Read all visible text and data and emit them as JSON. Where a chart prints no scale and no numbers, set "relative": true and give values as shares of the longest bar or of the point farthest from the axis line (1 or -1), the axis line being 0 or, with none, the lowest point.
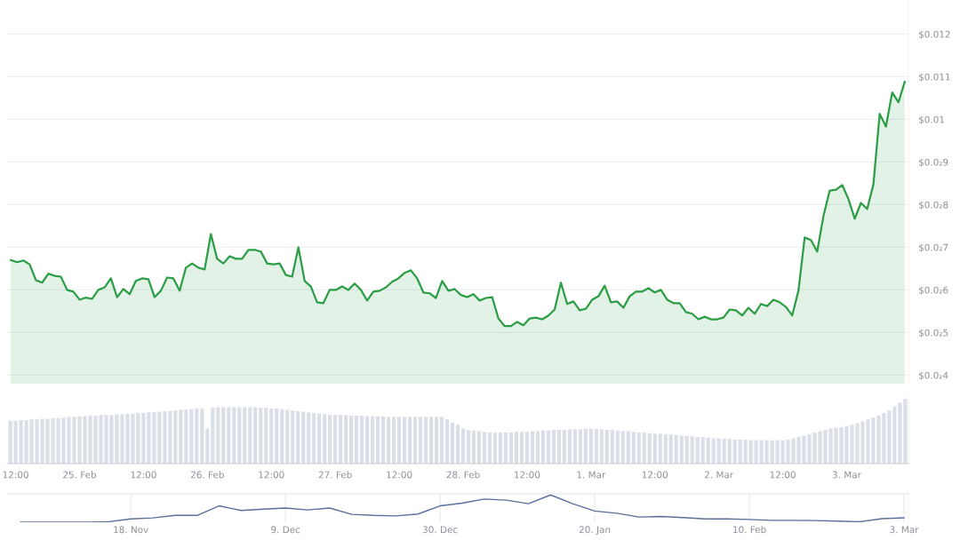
{
  "chart_data": [
    {
      "type": "area",
      "color": "#2a9d45",
      "grid": "y",
      "tick_labels": "y",
      "categories": [
        null,
        null,
        null,
        null,
        null,
        null,
        null,
        null,
        null,
        null,
        null,
        null,
        null,
        null,
        null,
        null,
        null,
        null,
        null,
        null,
        null,
        null,
        null,
        null,
        null,
        null,
        null,
        null,
        null,
        null,
        null,
        null,
        null,
        null,
        null,
        null,
        null,
        null,
        null,
        null,
        null,
        null,
        null,
        null,
        null,
        null,
        null,
        null,
        null,
        null,
        null,
        null,
        null,
        null,
        null,
        null,
        null,
        null,
        null,
        null,
        null,
        null,
        null,
        null,
        null,
        null,
        null,
        null,
        null,
        null,
        null,
        null,
        null,
        null,
        null,
        null,
        null,
        null,
        null,
        null,
        null,
        null,
        null,
        null,
        null,
        null,
        null,
        null,
        null,
        null,
        null,
        null,
        null,
        null,
        null,
        null,
        null,
        null,
        null,
        null,
        null,
        null,
        null,
        null,
        null,
        null,
        null,
        null,
        null,
        null,
        null,
        null,
        null,
        null,
        null,
        null,
        null,
        null,
        null,
        null,
        null,
        null,
        null,
        null,
        null,
        null,
        null,
        null,
        null,
        null,
        null,
        null,
        null,
        null,
        null,
        null,
        null,
        null,
        null,
        null,
        null,
        null,
        null,
        null
      ],
      "ylim": [
        0.0038,
        0.0128
      ],
      "yticks": [
        {
          "value": 0.004,
          "label": "$0.0₂4"
        },
        {
          "value": 0.005,
          "label": "$0.0₂5"
        },
        {
          "value": 0.006,
          "label": "$0.0₂6"
        },
        {
          "value": 0.007,
          "label": "$0.0₂7"
        },
        {
          "value": 0.008,
          "label": "$0.0₂8"
        },
        {
          "value": 0.009,
          "label": "$0.0₂9"
        },
        {
          "value": 0.01,
          "label": "$0.01"
        },
        {
          "value": 0.011,
          "label": "$0.011"
        },
        {
          "value": 0.012,
          "label": "$0.012"
        }
      ],
      "values": [
        0.0067,
        0.00665,
        0.00669,
        0.0066,
        0.00623,
        0.00617,
        0.00638,
        0.00633,
        0.00631,
        0.006,
        0.00596,
        0.00577,
        0.00582,
        0.00579,
        0.006,
        0.00606,
        0.00627,
        0.00583,
        0.00602,
        0.0059,
        0.00621,
        0.00627,
        0.00625,
        0.00583,
        0.00598,
        0.00629,
        0.00627,
        0.00598,
        0.00652,
        0.00662,
        0.00652,
        0.00648,
        0.00731,
        0.00673,
        0.00662,
        0.00679,
        0.00673,
        0.00673,
        0.00694,
        0.00694,
        0.0069,
        0.00662,
        0.0066,
        0.00662,
        0.00635,
        0.00631,
        0.007,
        0.00621,
        0.00608,
        0.00571,
        0.00569,
        0.006,
        0.006,
        0.00608,
        0.006,
        0.00615,
        0.006,
        0.00575,
        0.00596,
        0.00598,
        0.00606,
        0.00619,
        0.00627,
        0.0064,
        0.00646,
        0.00627,
        0.00594,
        0.00592,
        0.00581,
        0.00621,
        0.00598,
        0.00602,
        0.00588,
        0.00583,
        0.0059,
        0.00575,
        0.00581,
        0.00583,
        0.00533,
        0.00515,
        0.00515,
        0.00525,
        0.00517,
        0.00533,
        0.00535,
        0.00531,
        0.0054,
        0.00554,
        0.00617,
        0.00567,
        0.00573,
        0.00552,
        0.00556,
        0.00577,
        0.00585,
        0.0061,
        0.00571,
        0.00573,
        0.00558,
        0.00585,
        0.00596,
        0.00596,
        0.00604,
        0.00594,
        0.006,
        0.00577,
        0.00569,
        0.00569,
        0.00548,
        0.00544,
        0.00531,
        0.00537,
        0.00531,
        0.00531,
        0.00535,
        0.00554,
        0.00552,
        0.0054,
        0.00558,
        0.00544,
        0.00567,
        0.00562,
        0.00577,
        0.00571,
        0.0056,
        0.0054,
        0.00598,
        0.00723,
        0.00717,
        0.0069,
        0.00773,
        0.00833,
        0.00835,
        0.00846,
        0.00813,
        0.00767,
        0.00804,
        0.0079,
        0.00848,
        0.01013,
        0.00983,
        0.01063,
        0.0104,
        0.01088
      ]
    },
    {
      "type": "bar",
      "relative": true,
      "color": "#d9dee7",
      "categories": [
        null,
        "12:00",
        null,
        null,
        null,
        null,
        null,
        null,
        null,
        null,
        null,
        null,
        null,
        "25. Feb",
        null,
        null,
        null,
        null,
        null,
        null,
        null,
        null,
        null,
        null,
        null,
        "12:00",
        null,
        null,
        null,
        null,
        null,
        null,
        null,
        null,
        null,
        null,
        null,
        "26. Feb",
        null,
        null,
        null,
        null,
        null,
        null,
        null,
        null,
        null,
        null,
        null,
        "12:00",
        null,
        null,
        null,
        null,
        null,
        null,
        null,
        null,
        null,
        null,
        null,
        "27. Feb",
        null,
        null,
        null,
        null,
        null,
        null,
        null,
        null,
        null,
        null,
        null,
        "12:00",
        null,
        null,
        null,
        null,
        null,
        null,
        null,
        null,
        null,
        null,
        null,
        "28. Feb",
        null,
        null,
        null,
        null,
        null,
        null,
        null,
        null,
        null,
        null,
        null,
        "12:00",
        null,
        null,
        null,
        null,
        null,
        null,
        null,
        null,
        null,
        null,
        null,
        "1. Mar",
        null,
        null,
        null,
        null,
        null,
        null,
        null,
        null,
        null,
        null,
        null,
        "12:00",
        null,
        null,
        null,
        null,
        null,
        null,
        null,
        null,
        null,
        null,
        null,
        "2. Mar",
        null,
        null,
        null,
        null,
        null,
        null,
        null,
        null,
        null,
        null,
        null,
        "12:00",
        null,
        null,
        null,
        null,
        null,
        null,
        null,
        null,
        null,
        null,
        null,
        "3. Mar",
        null,
        null,
        null,
        null,
        null,
        null,
        null,
        null,
        null,
        null,
        null
      ],
      "values": [
        0.66,
        0.66,
        0.67,
        0.67,
        0.68,
        0.68,
        0.69,
        0.69,
        0.7,
        0.7,
        0.71,
        0.72,
        0.72,
        0.73,
        0.73,
        0.74,
        0.74,
        0.75,
        0.75,
        0.75,
        0.76,
        0.76,
        0.77,
        0.77,
        0.78,
        0.78,
        0.79,
        0.79,
        0.8,
        0.81,
        0.81,
        0.82,
        0.83,
        0.83,
        0.84,
        0.85,
        0.85,
        0.54,
        0.86,
        0.87,
        0.87,
        0.87,
        0.87,
        0.87,
        0.87,
        0.87,
        0.87,
        0.86,
        0.86,
        0.85,
        0.85,
        0.84,
        0.83,
        0.82,
        0.81,
        0.8,
        0.79,
        0.78,
        0.77,
        0.76,
        0.75,
        0.75,
        0.75,
        0.75,
        0.74,
        0.74,
        0.74,
        0.73,
        0.73,
        0.73,
        0.73,
        0.72,
        0.72,
        0.72,
        0.72,
        0.72,
        0.72,
        0.72,
        0.72,
        0.72,
        0.72,
        0.72,
        0.68,
        0.63,
        0.6,
        0.54,
        0.52,
        0.51,
        0.5,
        0.49,
        0.48,
        0.48,
        0.48,
        0.48,
        0.48,
        0.49,
        0.49,
        0.49,
        0.5,
        0.5,
        0.51,
        0.51,
        0.52,
        0.52,
        0.52,
        0.53,
        0.53,
        0.53,
        0.54,
        0.54,
        0.53,
        0.53,
        0.52,
        0.52,
        0.51,
        0.5,
        0.5,
        0.49,
        0.48,
        0.48,
        0.47,
        0.46,
        0.46,
        0.45,
        0.45,
        0.44,
        0.43,
        0.43,
        0.42,
        0.41,
        0.41,
        0.4,
        0.39,
        0.39,
        0.38,
        0.38,
        0.37,
        0.37,
        0.37,
        0.36,
        0.36,
        0.36,
        0.36,
        0.36,
        0.36,
        0.36,
        0.37,
        0.39,
        0.41,
        0.43,
        0.45,
        0.48,
        0.5,
        0.52,
        0.54,
        0.55,
        0.56,
        0.58,
        0.6,
        0.62,
        0.65,
        0.68,
        0.71,
        0.74,
        0.78,
        0.82,
        0.88,
        0.94,
        1
      ]
    },
    {
      "type": "line",
      "relative": true,
      "color": "#5b6f9c",
      "grid": "x",
      "tick_labels": "x",
      "categories": [
        null,
        null,
        null,
        null,
        null,
        "18. Nov",
        null,
        null,
        null,
        null,
        null,
        null,
        "9. Dec",
        null,
        null,
        null,
        null,
        null,
        null,
        "30. Dec",
        null,
        null,
        null,
        null,
        null,
        null,
        "20. Jan",
        null,
        null,
        null,
        null,
        null,
        null,
        "10. Feb",
        null,
        null,
        null,
        null,
        null,
        null,
        "3. Mar"
      ],
      "values": [
        0,
        0,
        0,
        0,
        0.02,
        0.12,
        0.16,
        0.25,
        0.25,
        0.6,
        0.43,
        0.48,
        0.52,
        0.45,
        0.52,
        0.29,
        0.25,
        0.23,
        0.3,
        0.6,
        0.7,
        0.85,
        0.81,
        0.68,
        1,
        0.68,
        0.41,
        0.33,
        0.19,
        0.21,
        0.17,
        0.12,
        0.12,
        0.1,
        0.07,
        0.07,
        0.06,
        0.04,
        0.02,
        0.13,
        0.16
      ]
    }
  ]
}
